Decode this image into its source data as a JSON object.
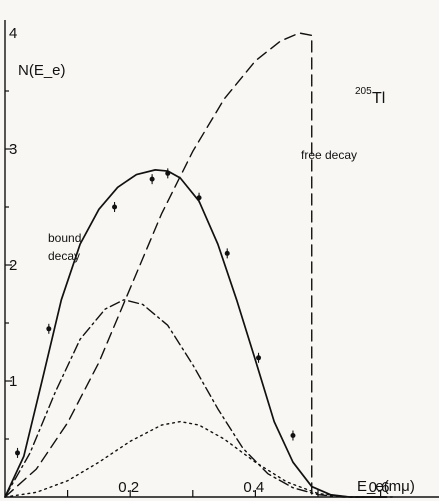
{
  "chart_data": {
    "type": "line",
    "title": "",
    "xlabel": "E_e(mμ)",
    "ylabel": "N(E_e)",
    "xlim": [
      0,
      0.7
    ],
    "ylim": [
      0,
      4.1
    ],
    "xticks": [
      {
        "value": 0.2,
        "label": "0.2"
      },
      {
        "value": 0.4,
        "label": "0.4"
      },
      {
        "value": 0.6,
        "label": "0.6"
      }
    ],
    "yticks": [
      {
        "value": 1,
        "label": "1"
      },
      {
        "value": 2,
        "label": "2"
      },
      {
        "value": 3,
        "label": "3"
      },
      {
        "value": 4,
        "label": "4"
      }
    ],
    "annotations": {
      "bound_decay_line1": "bound",
      "bound_decay_line2": "decay",
      "free_decay": "free decay",
      "isotope_mass": "205",
      "isotope_symbol": "Tl"
    },
    "series": [
      {
        "style": "solid",
        "x": [
          0.0,
          0.03,
          0.06,
          0.09,
          0.12,
          0.15,
          0.18,
          0.21,
          0.24,
          0.26,
          0.28,
          0.31,
          0.34,
          0.37,
          0.4,
          0.43,
          0.46,
          0.49,
          0.52,
          0.55,
          0.58,
          0.61
        ],
        "y": [
          0.0,
          0.35,
          1.02,
          1.7,
          2.18,
          2.48,
          2.67,
          2.78,
          2.82,
          2.81,
          2.75,
          2.55,
          2.18,
          1.7,
          1.18,
          0.65,
          0.3,
          0.09,
          0.02,
          0.0,
          0.0,
          0.0
        ]
      },
      {
        "style": "dashed",
        "x": [
          0.0,
          0.05,
          0.1,
          0.15,
          0.2,
          0.25,
          0.3,
          0.35,
          0.4,
          0.44,
          0.47,
          0.49,
          0.49
        ],
        "y": [
          0.0,
          0.24,
          0.64,
          1.16,
          1.8,
          2.44,
          2.98,
          3.43,
          3.76,
          3.93,
          4.0,
          3.98,
          0.0
        ]
      },
      {
        "style": "dashdot",
        "x": [
          0.0,
          0.04,
          0.08,
          0.12,
          0.16,
          0.19,
          0.22,
          0.26,
          0.3,
          0.34,
          0.38,
          0.42,
          0.46,
          0.5,
          0.54,
          0.58,
          0.62
        ],
        "y": [
          0.0,
          0.38,
          0.9,
          1.36,
          1.62,
          1.7,
          1.66,
          1.48,
          1.14,
          0.76,
          0.42,
          0.2,
          0.08,
          0.02,
          0.0,
          0.0,
          0.0
        ]
      },
      {
        "style": "dotted",
        "x": [
          0.0,
          0.05,
          0.1,
          0.15,
          0.2,
          0.25,
          0.28,
          0.31,
          0.35,
          0.4,
          0.45,
          0.5,
          0.55,
          0.6
        ],
        "y": [
          0.0,
          0.04,
          0.14,
          0.3,
          0.48,
          0.62,
          0.65,
          0.62,
          0.5,
          0.3,
          0.13,
          0.03,
          0.0,
          0.0
        ]
      }
    ],
    "points": [
      {
        "x": 0.02,
        "y": 0.38
      },
      {
        "x": 0.07,
        "y": 1.45
      },
      {
        "x": 0.175,
        "y": 2.5
      },
      {
        "x": 0.235,
        "y": 2.74
      },
      {
        "x": 0.26,
        "y": 2.79
      },
      {
        "x": 0.31,
        "y": 2.58
      },
      {
        "x": 0.355,
        "y": 2.1
      },
      {
        "x": 0.405,
        "y": 1.2
      },
      {
        "x": 0.46,
        "y": 0.53
      }
    ]
  }
}
